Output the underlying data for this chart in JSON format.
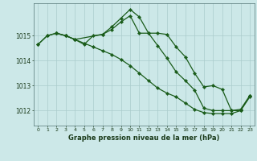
{
  "title": "Graphe pression niveau de la mer (hPa)",
  "bg_color": "#cce8e8",
  "grid_color": "#aacccc",
  "line_color": "#1a5c1a",
  "x_ticks": [
    0,
    1,
    2,
    3,
    4,
    5,
    6,
    7,
    8,
    9,
    10,
    11,
    12,
    13,
    14,
    15,
    16,
    17,
    18,
    19,
    20,
    21,
    22,
    23
  ],
  "y_ticks": [
    1012,
    1013,
    1014,
    1015
  ],
  "ylim": [
    1011.4,
    1016.3
  ],
  "xlim": [
    -0.5,
    23.5
  ],
  "line1": {
    "x": [
      0,
      1,
      2,
      3,
      4,
      5,
      6,
      7,
      8,
      9,
      10,
      11,
      12,
      13,
      14,
      15,
      16,
      17,
      18,
      19,
      20,
      21,
      22,
      23
    ],
    "y": [
      1014.65,
      1015.0,
      1015.1,
      1015.0,
      1014.85,
      1014.7,
      1014.55,
      1014.4,
      1014.25,
      1014.05,
      1013.8,
      1013.5,
      1013.2,
      1012.9,
      1012.7,
      1012.55,
      1012.3,
      1012.05,
      1011.92,
      1011.88,
      1011.88,
      1011.88,
      1012.0,
      1012.55
    ]
  },
  "line2": {
    "x": [
      0,
      1,
      2,
      3,
      4,
      5,
      6,
      7,
      8,
      9,
      10,
      11,
      12,
      13,
      14,
      15,
      16,
      17,
      18,
      19,
      20,
      21,
      22,
      23
    ],
    "y": [
      1014.65,
      1015.0,
      1015.1,
      1015.0,
      1014.85,
      1014.65,
      1015.0,
      1015.05,
      1015.25,
      1015.55,
      1015.8,
      1015.1,
      1015.1,
      1014.6,
      1014.1,
      1013.55,
      1013.2,
      1012.82,
      1012.1,
      1012.0,
      1012.0,
      1012.0,
      1012.05,
      1012.6
    ]
  },
  "line3": {
    "x": [
      2,
      3,
      4,
      7,
      8,
      9,
      10,
      11,
      12,
      13,
      14,
      15,
      16,
      17,
      18,
      19,
      20,
      21,
      22,
      23
    ],
    "y": [
      1015.1,
      1015.0,
      1014.85,
      1015.05,
      1015.35,
      1015.7,
      1016.05,
      1015.75,
      1015.1,
      1015.1,
      1015.05,
      1014.55,
      1014.15,
      1013.5,
      1012.95,
      1013.0,
      1012.85,
      1012.0,
      1012.0,
      1012.6
    ]
  }
}
